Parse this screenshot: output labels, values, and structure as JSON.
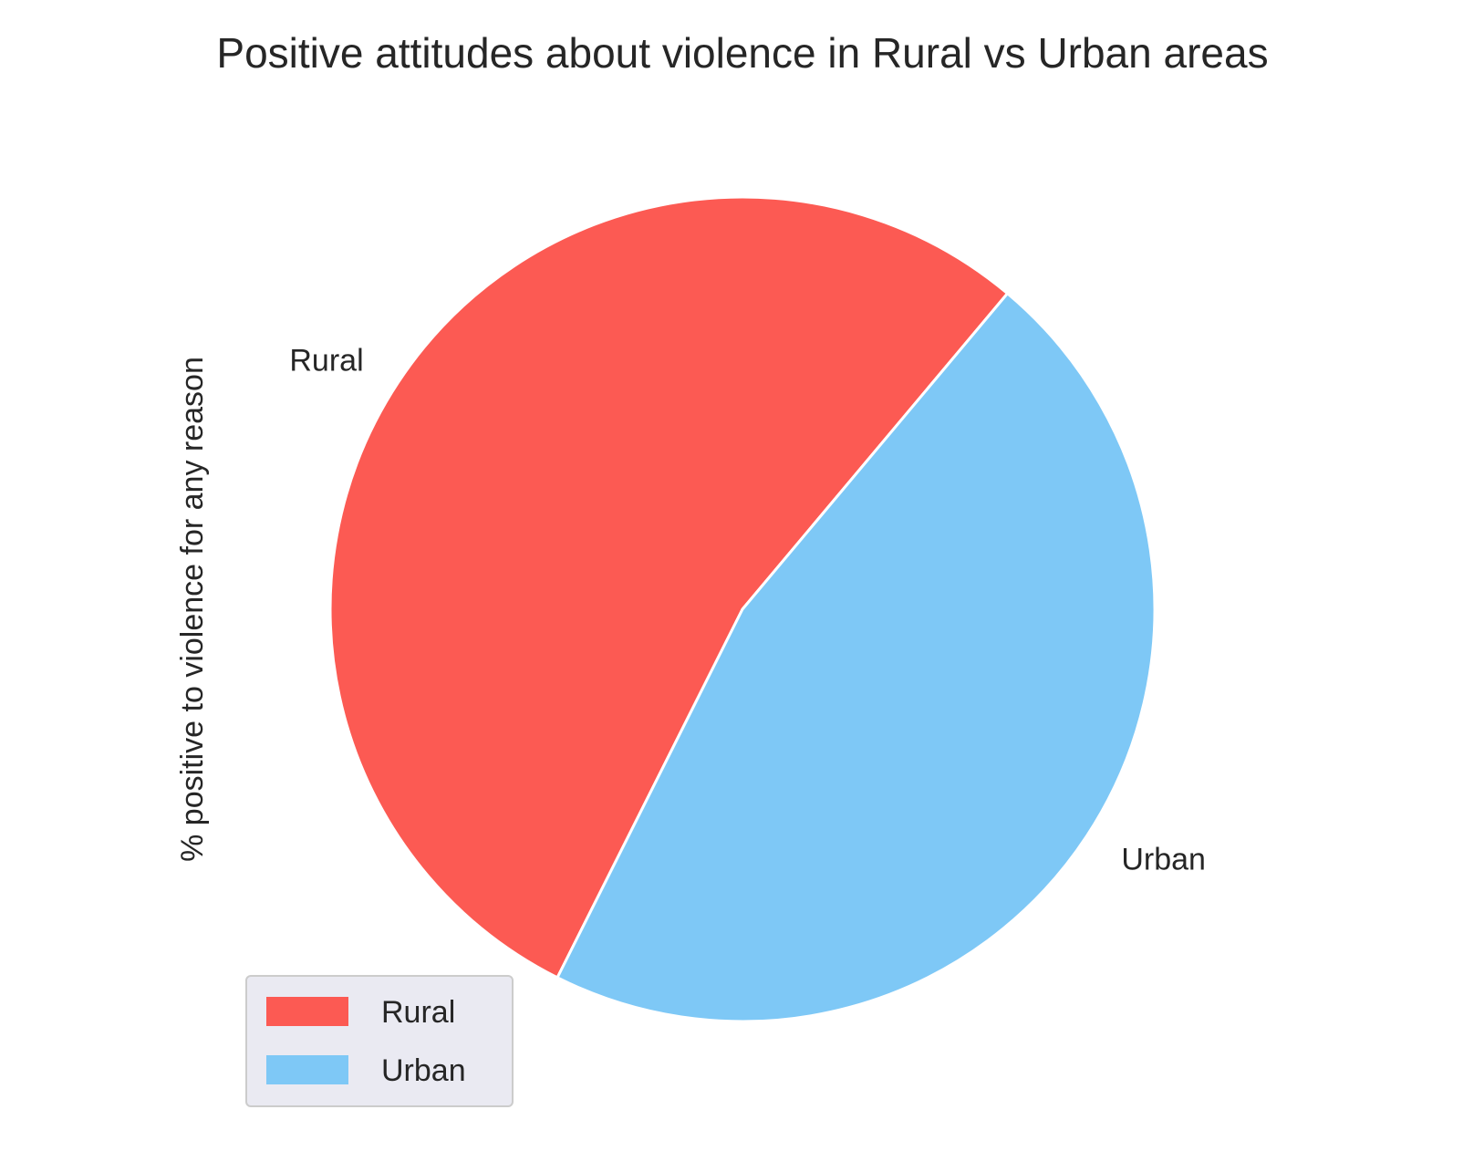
{
  "chart_data": {
    "type": "pie",
    "title": "Positive attitudes about violence in Rural vs Urban areas",
    "ylabel": "% positive to violence for any reason",
    "categories": [
      "Rural",
      "Urban"
    ],
    "values": [
      53.7,
      46.3
    ],
    "colors": [
      "#fc5a53",
      "#7ec8f6"
    ],
    "start_angle_deg": 50,
    "counterclock": true,
    "wedge_edge_color": "#ffffff",
    "legend": {
      "placement": "lower-left",
      "entries": [
        "Rural",
        "Urban"
      ],
      "background": "#eaeaf2",
      "border": "#cccccc"
    }
  }
}
